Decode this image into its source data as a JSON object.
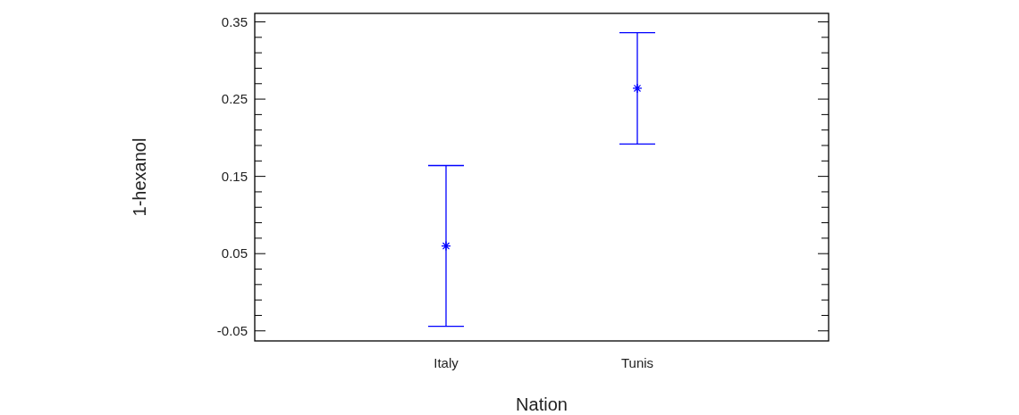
{
  "chart_data": {
    "type": "scatter",
    "xlabel": "Nation",
    "ylabel": "1-hexanol",
    "categories": [
      "Italy",
      "Tunis"
    ],
    "series": [
      {
        "color": "#0000ff",
        "values": [
          0.06,
          0.264
        ],
        "errors": [
          0.104,
          0.072
        ]
      }
    ],
    "marker": "cross",
    "ylim": [
      -0.063,
      0.361
    ],
    "yticks": [
      -0.05,
      {
        "value": -0.03,
        "label": null
      },
      {
        "value": -0.01,
        "label": null
      },
      {
        "value": 0.01,
        "label": null
      },
      {
        "value": 0.03,
        "label": null
      },
      0.05,
      {
        "value": 0.07,
        "label": null
      },
      {
        "value": 0.09,
        "label": null
      },
      {
        "value": 0.11,
        "label": null
      },
      {
        "value": 0.13,
        "label": null
      },
      0.15,
      {
        "value": 0.17,
        "label": null
      },
      {
        "value": 0.19,
        "label": null
      },
      {
        "value": 0.21,
        "label": null
      },
      {
        "value": 0.23,
        "label": null
      },
      0.25,
      {
        "value": 0.27,
        "label": null
      },
      {
        "value": 0.29,
        "label": null
      },
      {
        "value": 0.31,
        "label": null
      },
      {
        "value": 0.33,
        "label": null
      },
      0.35
    ]
  }
}
